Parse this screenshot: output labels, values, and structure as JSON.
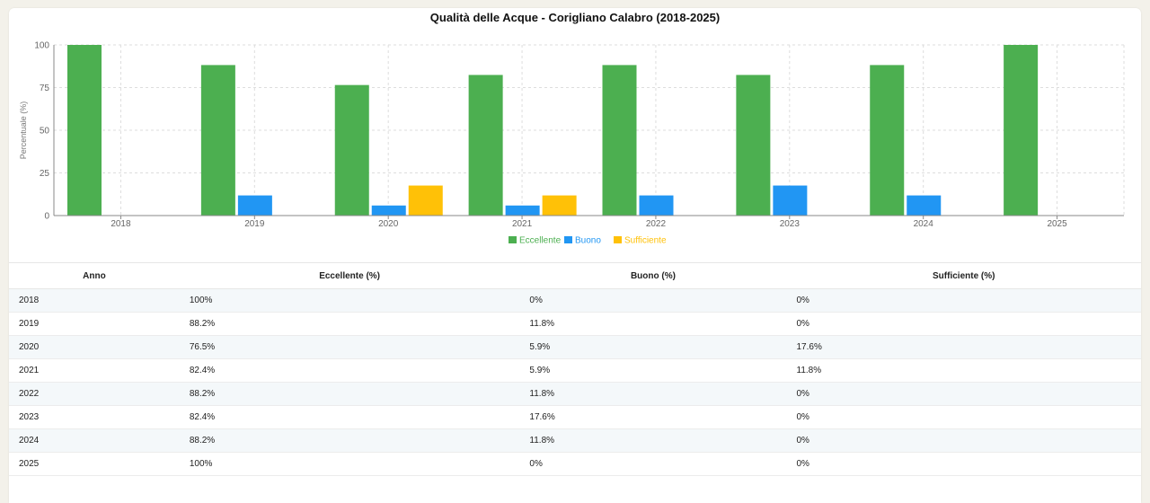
{
  "chart_data": {
    "type": "bar",
    "title": "Qualità delle Acque - Corigliano Calabro (2018-2025)",
    "xlabel": "",
    "ylabel": "Percentuale (%)",
    "ylim": [
      0,
      100
    ],
    "yticks": [
      0,
      25,
      50,
      75,
      100
    ],
    "grid": true,
    "legend_position": "bottom",
    "categories": [
      "2018",
      "2019",
      "2020",
      "2021",
      "2022",
      "2023",
      "2024",
      "2025"
    ],
    "series": [
      {
        "name": "Eccellente",
        "color": "#4caf50",
        "values": [
          100,
          88.2,
          76.5,
          82.4,
          88.2,
          82.4,
          88.2,
          100
        ]
      },
      {
        "name": "Buono",
        "color": "#2196f3",
        "values": [
          0,
          11.8,
          5.9,
          5.9,
          11.8,
          17.6,
          11.8,
          0
        ]
      },
      {
        "name": "Sufficiente",
        "color": "#ffc107",
        "values": [
          0,
          0,
          17.6,
          11.8,
          0,
          0,
          0,
          0
        ]
      }
    ]
  },
  "table": {
    "headers": [
      "Anno",
      "Eccellente (%)",
      "Buono (%)",
      "Sufficiente (%)"
    ],
    "rows": [
      [
        "2018",
        "100%",
        "0%",
        "0%"
      ],
      [
        "2019",
        "88.2%",
        "11.8%",
        "0%"
      ],
      [
        "2020",
        "76.5%",
        "5.9%",
        "17.6%"
      ],
      [
        "2021",
        "82.4%",
        "5.9%",
        "11.8%"
      ],
      [
        "2022",
        "88.2%",
        "11.8%",
        "0%"
      ],
      [
        "2023",
        "82.4%",
        "17.6%",
        "0%"
      ],
      [
        "2024",
        "88.2%",
        "11.8%",
        "0%"
      ],
      [
        "2025",
        "100%",
        "0%",
        "0%"
      ]
    ]
  }
}
